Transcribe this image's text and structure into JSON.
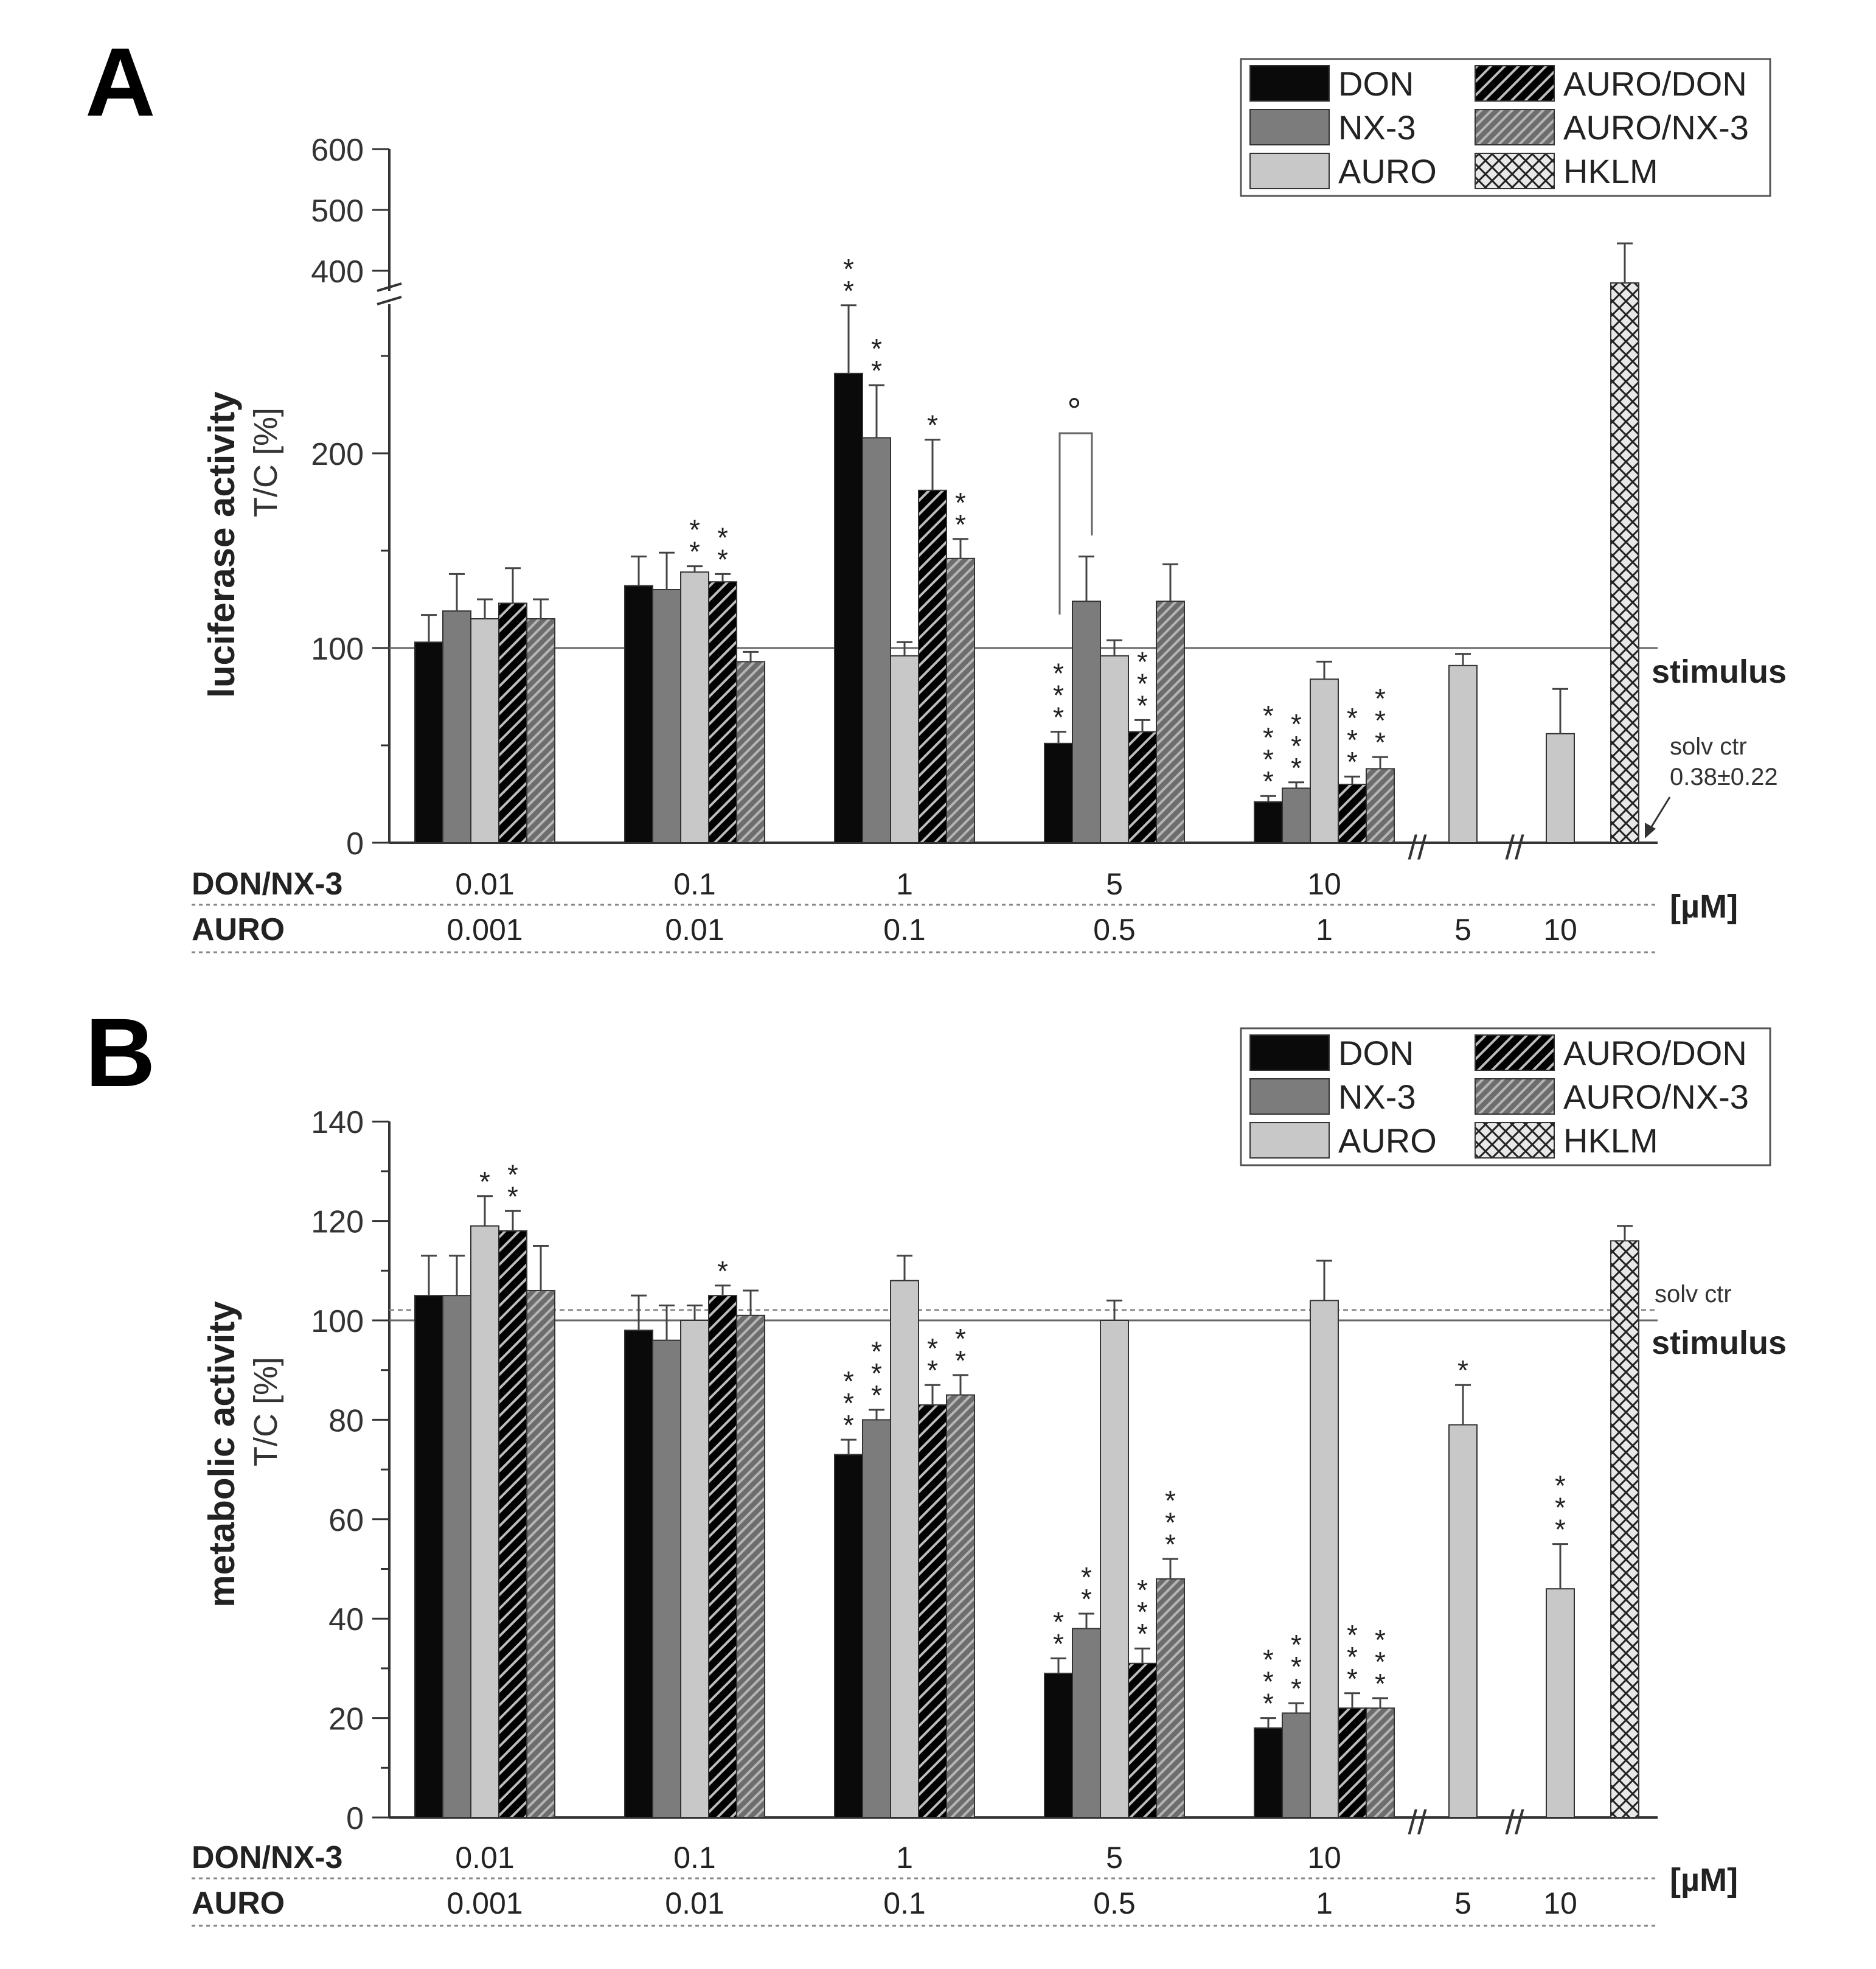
{
  "panel_labels": [
    "A",
    "B"
  ],
  "row_labels": {
    "don_nx3": "DON/NX-3",
    "auro": "AURO",
    "unit": "[µM]"
  },
  "group_labels": {
    "don_nx3": [
      "0.01",
      "0.1",
      "1",
      "5",
      "10"
    ],
    "auro": [
      "0.001",
      "0.01",
      "0.1",
      "0.5",
      "1",
      "5",
      "10"
    ]
  },
  "legend": [
    "DON",
    "AURO/DON",
    "NX-3",
    "AURO/NX-3",
    "AURO",
    "HKLM"
  ],
  "colors": {
    "DON": "#0a0a0a",
    "NX-3": "#7c7c7c",
    "AURO": "#c8c8c8",
    "AURO/DON": "#141414",
    "AURO/NX-3": "#7e7e7e",
    "HKLM": "#e6e6e6"
  },
  "chart_data": [
    {
      "type": "bar",
      "panel": "A",
      "ylabel": "luciferase activity",
      "ylabel2": "T/C [%]",
      "y_ticks_lower": [
        "0",
        "100",
        "200"
      ],
      "y_ticks_upper": [
        "400",
        "500",
        "600"
      ],
      "ylim_lower": [
        0,
        290
      ],
      "ylim_upper": [
        380,
        600
      ],
      "axis_break": true,
      "reference_label": "stimulus",
      "reference_value": 100,
      "solv_ctr_label": "solv ctr",
      "solv_ctr_value": "0.38±0.22",
      "categories": [
        "0.01",
        "0.1",
        "1",
        "5",
        "10"
      ],
      "series": [
        {
          "name": "DON",
          "values": [
            103,
            132,
            241,
            51,
            21
          ],
          "errors": [
            14,
            15,
            35,
            6,
            3
          ],
          "sig": [
            "",
            "",
            "**",
            "***",
            "****"
          ]
        },
        {
          "name": "NX-3",
          "values": [
            119,
            130,
            208,
            124,
            28
          ],
          "errors": [
            19,
            19,
            27,
            23,
            3
          ],
          "sig": [
            "",
            "",
            "**",
            "",
            "***"
          ]
        },
        {
          "name": "AURO",
          "values": [
            115,
            139,
            96,
            96,
            84
          ],
          "errors": [
            10,
            3,
            7,
            8,
            9
          ],
          "sig": [
            "",
            "**",
            "",
            "",
            ""
          ]
        },
        {
          "name": "AURO/DON",
          "values": [
            123,
            134,
            181,
            57,
            30
          ],
          "errors": [
            18,
            4,
            26,
            6,
            4
          ],
          "sig": [
            "",
            "**",
            "*",
            "***",
            "***"
          ]
        },
        {
          "name": "AURO/NX-3",
          "values": [
            115,
            93,
            146,
            124,
            38
          ],
          "errors": [
            10,
            5,
            10,
            19,
            6
          ],
          "sig": [
            "",
            "",
            "**",
            "",
            "***"
          ]
        }
      ],
      "extra_bars": [
        {
          "name": "AURO",
          "x_label": "5",
          "value": 91,
          "error": 6,
          "sig": ""
        },
        {
          "name": "AURO",
          "x_label": "10",
          "value": 56,
          "error": 23,
          "sig": ""
        },
        {
          "name": "HKLM",
          "x_label": "",
          "value": 380,
          "error": 65,
          "sig": ""
        }
      ],
      "comparison": {
        "groups": "5",
        "between": [
          "DON",
          "NX-3"
        ],
        "symbol": "°"
      }
    },
    {
      "type": "bar",
      "panel": "B",
      "ylabel": "metabolic activity",
      "ylabel2": "T/C [%]",
      "y_ticks": [
        "0",
        "20",
        "40",
        "60",
        "80",
        "100",
        "120",
        "140"
      ],
      "ylim": [
        0,
        140
      ],
      "reference_label": "stimulus",
      "reference_value": 100,
      "solv_ctr_label": "solv ctr",
      "solv_ctr_value": 102,
      "categories": [
        "0.01",
        "0.1",
        "1",
        "5",
        "10"
      ],
      "series": [
        {
          "name": "DON",
          "values": [
            105,
            98,
            73,
            29,
            18
          ],
          "errors": [
            8,
            7,
            3,
            3,
            2
          ],
          "sig": [
            "",
            "",
            "***",
            "**",
            "***"
          ]
        },
        {
          "name": "NX-3",
          "values": [
            105,
            96,
            80,
            38,
            21
          ],
          "errors": [
            8,
            7,
            2,
            3,
            2
          ],
          "sig": [
            "",
            "",
            "***",
            "**",
            "***"
          ]
        },
        {
          "name": "AURO",
          "values": [
            119,
            100,
            108,
            100,
            104
          ],
          "errors": [
            6,
            3,
            5,
            4,
            8
          ],
          "sig": [
            "*",
            "",
            "",
            "",
            ""
          ]
        },
        {
          "name": "AURO/DON",
          "values": [
            118,
            105,
            83,
            31,
            22
          ],
          "errors": [
            4,
            2,
            4,
            3,
            3
          ],
          "sig": [
            "**",
            "*",
            "**",
            "***",
            "***"
          ]
        },
        {
          "name": "AURO/NX-3",
          "values": [
            106,
            101,
            85,
            48,
            22
          ],
          "errors": [
            9,
            5,
            4,
            4,
            2
          ],
          "sig": [
            "",
            "",
            "**",
            "***",
            "***"
          ]
        }
      ],
      "extra_bars": [
        {
          "name": "AURO",
          "x_label": "5",
          "value": 79,
          "error": 8,
          "sig": "*"
        },
        {
          "name": "AURO",
          "x_label": "10",
          "value": 46,
          "error": 9,
          "sig": "***"
        },
        {
          "name": "HKLM",
          "x_label": "",
          "value": 116,
          "error": 3,
          "sig": ""
        }
      ]
    }
  ]
}
